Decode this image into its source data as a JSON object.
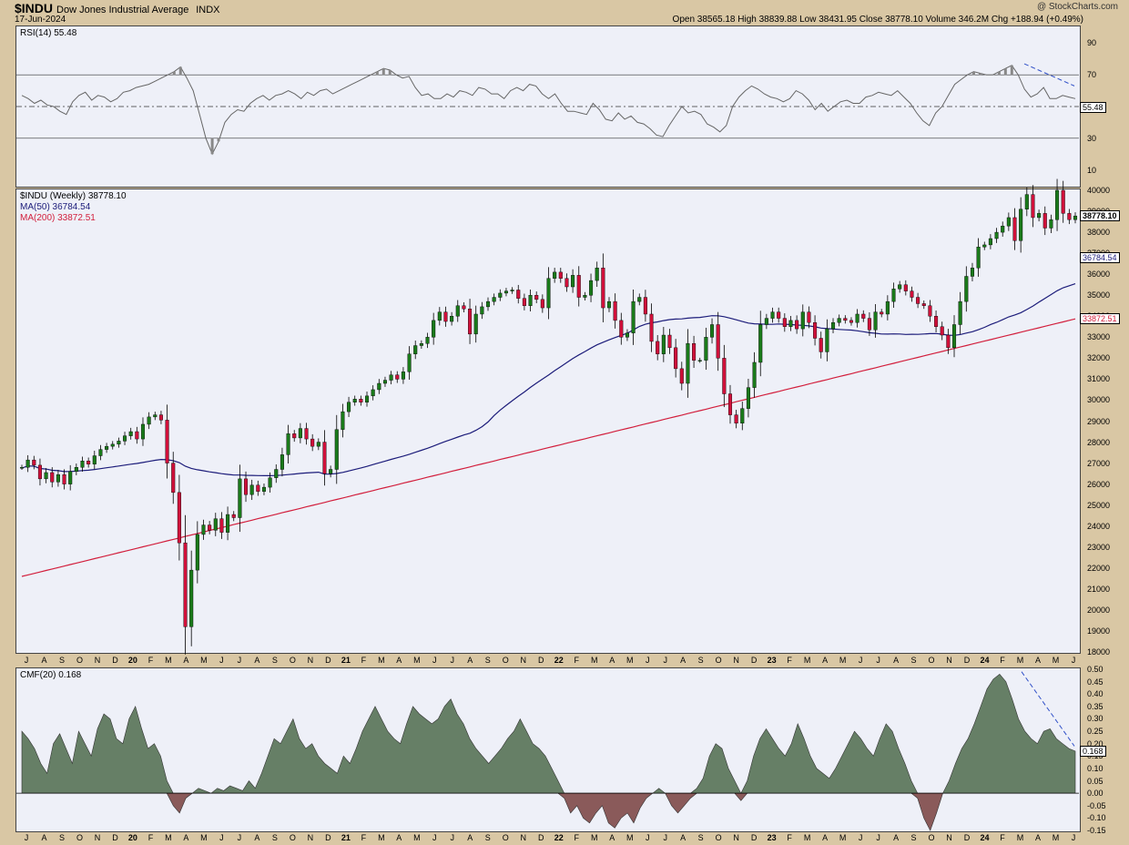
{
  "header": {
    "symbol": "$INDU",
    "name": "Dow Jones Industrial Average",
    "exchange": "INDX",
    "date": "17-Jun-2024",
    "quote": "Open 38565.18  High 38839.88  Low 38431.95  Close 38778.10  Volume 346.2M  Chg +188.94 (+0.49%)",
    "copyright": "@ StockCharts.com"
  },
  "colors": {
    "up": "#1a7a1a",
    "down": "#d0103a",
    "ma50": "#1c1c7a",
    "ma200": "#d21e3c",
    "rsi_line": "#666666",
    "cmf_pos": "#667f66",
    "cmf_neg": "#8a5a5a",
    "trend": "#3050c8"
  },
  "x_axis_labels": [
    "J",
    "A",
    "S",
    "O",
    "N",
    "D",
    "20",
    "F",
    "M",
    "A",
    "M",
    "J",
    "J",
    "A",
    "S",
    "O",
    "N",
    "D",
    "21",
    "F",
    "M",
    "A",
    "M",
    "J",
    "J",
    "A",
    "S",
    "O",
    "N",
    "D",
    "22",
    "F",
    "M",
    "A",
    "M",
    "J",
    "J",
    "A",
    "S",
    "O",
    "N",
    "D",
    "23",
    "F",
    "M",
    "A",
    "M",
    "J",
    "J",
    "A",
    "S",
    "O",
    "N",
    "D",
    "24",
    "F",
    "M",
    "A",
    "M",
    "J"
  ],
  "chart_data": [
    {
      "panel": "rsi",
      "type": "line",
      "legend": "RSI(14) 55.48",
      "last_value_label": "55.48",
      "ylim": [
        0,
        100
      ],
      "ticks": [
        10,
        30,
        50,
        70,
        90
      ],
      "reference_lines": [
        30,
        50,
        70
      ],
      "values": [
        57,
        55,
        52,
        54,
        51,
        50,
        47,
        45,
        53,
        57,
        59,
        54,
        57,
        56,
        53,
        55,
        59,
        60,
        62,
        63,
        64,
        66,
        68,
        70,
        72,
        75,
        68,
        60,
        45,
        30,
        20,
        28,
        40,
        45,
        48,
        47,
        52,
        55,
        57,
        54,
        57,
        58,
        60,
        58,
        55,
        59,
        57,
        60,
        61,
        58,
        60,
        62,
        64,
        66,
        68,
        70,
        72,
        74,
        73,
        70,
        68,
        69,
        62,
        57,
        58,
        55,
        55,
        58,
        56,
        60,
        59,
        57,
        62,
        61,
        58,
        58,
        55,
        60,
        62,
        60,
        64,
        63,
        58,
        55,
        58,
        52,
        47,
        47,
        46,
        45,
        52,
        48,
        42,
        41,
        46,
        42,
        44,
        40,
        39,
        36,
        32,
        31,
        38,
        44,
        50,
        46,
        47,
        45,
        39,
        37,
        34,
        38,
        50,
        56,
        60,
        63,
        61,
        58,
        56,
        55,
        53,
        55,
        60,
        58,
        54,
        48,
        52,
        47,
        50,
        53,
        54,
        52,
        52,
        56,
        57,
        59,
        58,
        57,
        60,
        56,
        52,
        46,
        41,
        38,
        46,
        50,
        57,
        64,
        67,
        70,
        72,
        71,
        70,
        70,
        72,
        74,
        76,
        70,
        61,
        56,
        58,
        62,
        55,
        55,
        57,
        56,
        55
      ]
    },
    {
      "panel": "price",
      "type": "candlestick",
      "legend_main": "$INDU (Weekly) 38778.10",
      "legend_ma50": "MA(50) 36784.54",
      "legend_ma200": "MA(200) 33872.51",
      "last_price_label": "38778.10",
      "ma50_label": "36784.54",
      "ma200_label": "33872.51",
      "ylim": [
        18000,
        40000
      ],
      "ticks": [
        18000,
        19000,
        20000,
        21000,
        22000,
        23000,
        24000,
        25000,
        26000,
        27000,
        28000,
        29000,
        30000,
        31000,
        32000,
        33000,
        34000,
        35000,
        36000,
        37000,
        38000,
        39000,
        40000
      ],
      "closes": [
        26800,
        27150,
        26900,
        26250,
        26550,
        26100,
        26450,
        26000,
        26600,
        26800,
        27100,
        26950,
        27350,
        27650,
        27800,
        27900,
        28050,
        28300,
        28500,
        28150,
        28850,
        29200,
        29300,
        29050,
        27000,
        25600,
        23200,
        19200,
        21900,
        23600,
        24050,
        23800,
        24350,
        23700,
        24550,
        24400,
        26250,
        25500,
        25950,
        25650,
        25850,
        26300,
        26700,
        27400,
        28400,
        28200,
        28650,
        28150,
        27800,
        28000,
        26500,
        26700,
        28600,
        29450,
        29900,
        30050,
        29900,
        30200,
        30500,
        30800,
        30950,
        31200,
        31000,
        31350,
        32200,
        32600,
        32700,
        33000,
        33800,
        34200,
        33750,
        34000,
        34500,
        34350,
        33150,
        34100,
        34450,
        34700,
        34900,
        35100,
        35200,
        35250,
        34850,
        34500,
        35000,
        34800,
        34400,
        35800,
        36100,
        35800,
        35400,
        35950,
        34900,
        35000,
        35700,
        36300,
        34400,
        34700,
        33800,
        33000,
        33200,
        34700,
        34900,
        34100,
        32800,
        32200,
        33100,
        32500,
        31500,
        30800,
        32700,
        31900,
        31900,
        33000,
        33600,
        32000,
        30300,
        29300,
        28900,
        29600,
        30600,
        31800,
        33600,
        33900,
        34200,
        33900,
        33500,
        33800,
        33400,
        34200,
        33700,
        32950,
        32300,
        33400,
        33700,
        33900,
        33800,
        33700,
        34100,
        33900,
        33350,
        34200,
        34100,
        34700,
        35300,
        35500,
        35200,
        34900,
        34600,
        34500,
        34000,
        33500,
        33100,
        32500,
        33600,
        34700,
        35900,
        36300,
        37300,
        37400,
        37700,
        38000,
        38300,
        38700,
        37600,
        39100,
        39800,
        38700,
        38900,
        38200,
        38600,
        40000,
        38900,
        38600,
        38778
      ]
    },
    {
      "panel": "cmf",
      "type": "area",
      "legend": "CMF(20) 0.168",
      "last_value_label": "0.168",
      "ylim": [
        -0.15,
        0.5
      ],
      "ticks": [
        -0.15,
        -0.1,
        -0.05,
        0.0,
        0.05,
        0.1,
        0.15,
        0.2,
        0.25,
        0.3,
        0.35,
        0.4,
        0.45,
        0.5
      ],
      "values": [
        0.25,
        0.22,
        0.18,
        0.12,
        0.08,
        0.2,
        0.24,
        0.18,
        0.12,
        0.25,
        0.2,
        0.15,
        0.26,
        0.32,
        0.3,
        0.22,
        0.2,
        0.3,
        0.35,
        0.26,
        0.18,
        0.2,
        0.15,
        0.05,
        -0.05,
        -0.08,
        -0.02,
        0.0,
        0.02,
        0.01,
        0.0,
        0.02,
        0.01,
        0.03,
        0.02,
        0.01,
        0.05,
        0.02,
        0.08,
        0.15,
        0.22,
        0.2,
        0.25,
        0.3,
        0.22,
        0.18,
        0.2,
        0.15,
        0.12,
        0.1,
        0.08,
        0.15,
        0.12,
        0.18,
        0.25,
        0.3,
        0.35,
        0.3,
        0.25,
        0.22,
        0.2,
        0.28,
        0.35,
        0.32,
        0.3,
        0.28,
        0.3,
        0.35,
        0.38,
        0.32,
        0.28,
        0.22,
        0.18,
        0.15,
        0.12,
        0.15,
        0.18,
        0.22,
        0.25,
        0.3,
        0.25,
        0.2,
        0.18,
        0.15,
        0.1,
        0.05,
        -0.02,
        -0.08,
        -0.05,
        -0.1,
        -0.12,
        -0.08,
        -0.05,
        -0.12,
        -0.14,
        -0.1,
        -0.08,
        -0.12,
        -0.06,
        -0.02,
        0.0,
        0.02,
        0.0,
        -0.05,
        -0.08,
        -0.05,
        -0.02,
        0.02,
        0.06,
        0.15,
        0.2,
        0.18,
        0.1,
        0.05,
        -0.03,
        0.05,
        0.15,
        0.22,
        0.26,
        0.22,
        0.18,
        0.15,
        0.2,
        0.28,
        0.22,
        0.15,
        0.1,
        0.08,
        0.06,
        0.1,
        0.15,
        0.2,
        0.25,
        0.22,
        0.18,
        0.15,
        0.22,
        0.28,
        0.25,
        0.18,
        0.12,
        0.05,
        -0.02,
        -0.1,
        -0.15,
        -0.08,
        0.0,
        0.05,
        0.12,
        0.18,
        0.22,
        0.28,
        0.35,
        0.42,
        0.46,
        0.48,
        0.45,
        0.38,
        0.3,
        0.25,
        0.22,
        0.2,
        0.25,
        0.26,
        0.22,
        0.2,
        0.18,
        0.17
      ]
    }
  ]
}
